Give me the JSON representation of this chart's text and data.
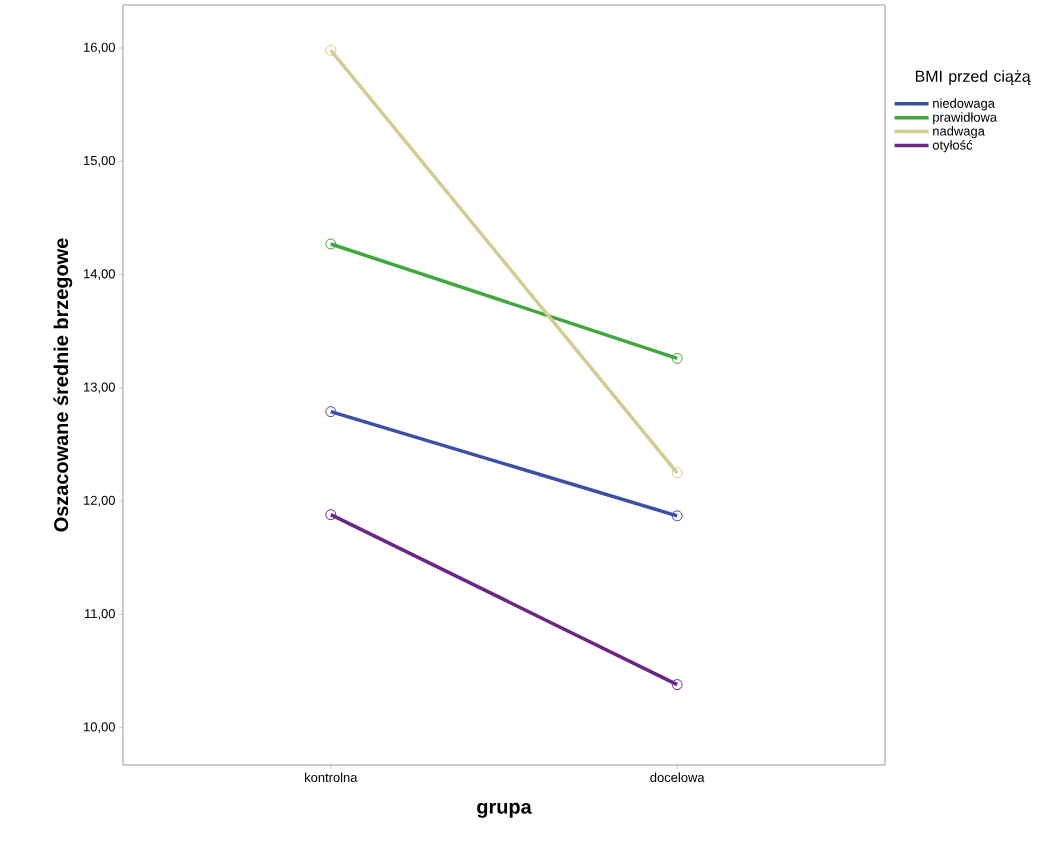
{
  "chart_data": {
    "type": "line",
    "xlabel": "grupa",
    "ylabel": "Oszacowane średnie brzegowe",
    "legend_title": "BMI przed ciążą",
    "categories": [
      "kontrolna",
      "docelowa"
    ],
    "series": [
      {
        "name": "niedowaga",
        "color": "#3c4fa6",
        "values": [
          12.79,
          11.87
        ]
      },
      {
        "name": "prawidłowa",
        "color": "#3fa83a",
        "values": [
          14.27,
          13.26
        ]
      },
      {
        "name": "nadwaga",
        "color": "#d3cc8f",
        "values": [
          15.98,
          12.25
        ]
      },
      {
        "name": "otyłość",
        "color": "#6b2582",
        "values": [
          11.88,
          10.38
        ]
      }
    ],
    "ylim": [
      9.67,
      16.38
    ],
    "yticks": [
      {
        "value": 10,
        "label": "10,00"
      },
      {
        "value": 11,
        "label": "11,00"
      },
      {
        "value": 12,
        "label": "12,00"
      },
      {
        "value": 13,
        "label": "13,00"
      },
      {
        "value": 14,
        "label": "14,00"
      },
      {
        "value": 15,
        "label": "15,00"
      },
      {
        "value": 16,
        "label": "16,00"
      }
    ],
    "legend": "right",
    "marker": "circle",
    "line_style": "solid",
    "grid": false
  }
}
